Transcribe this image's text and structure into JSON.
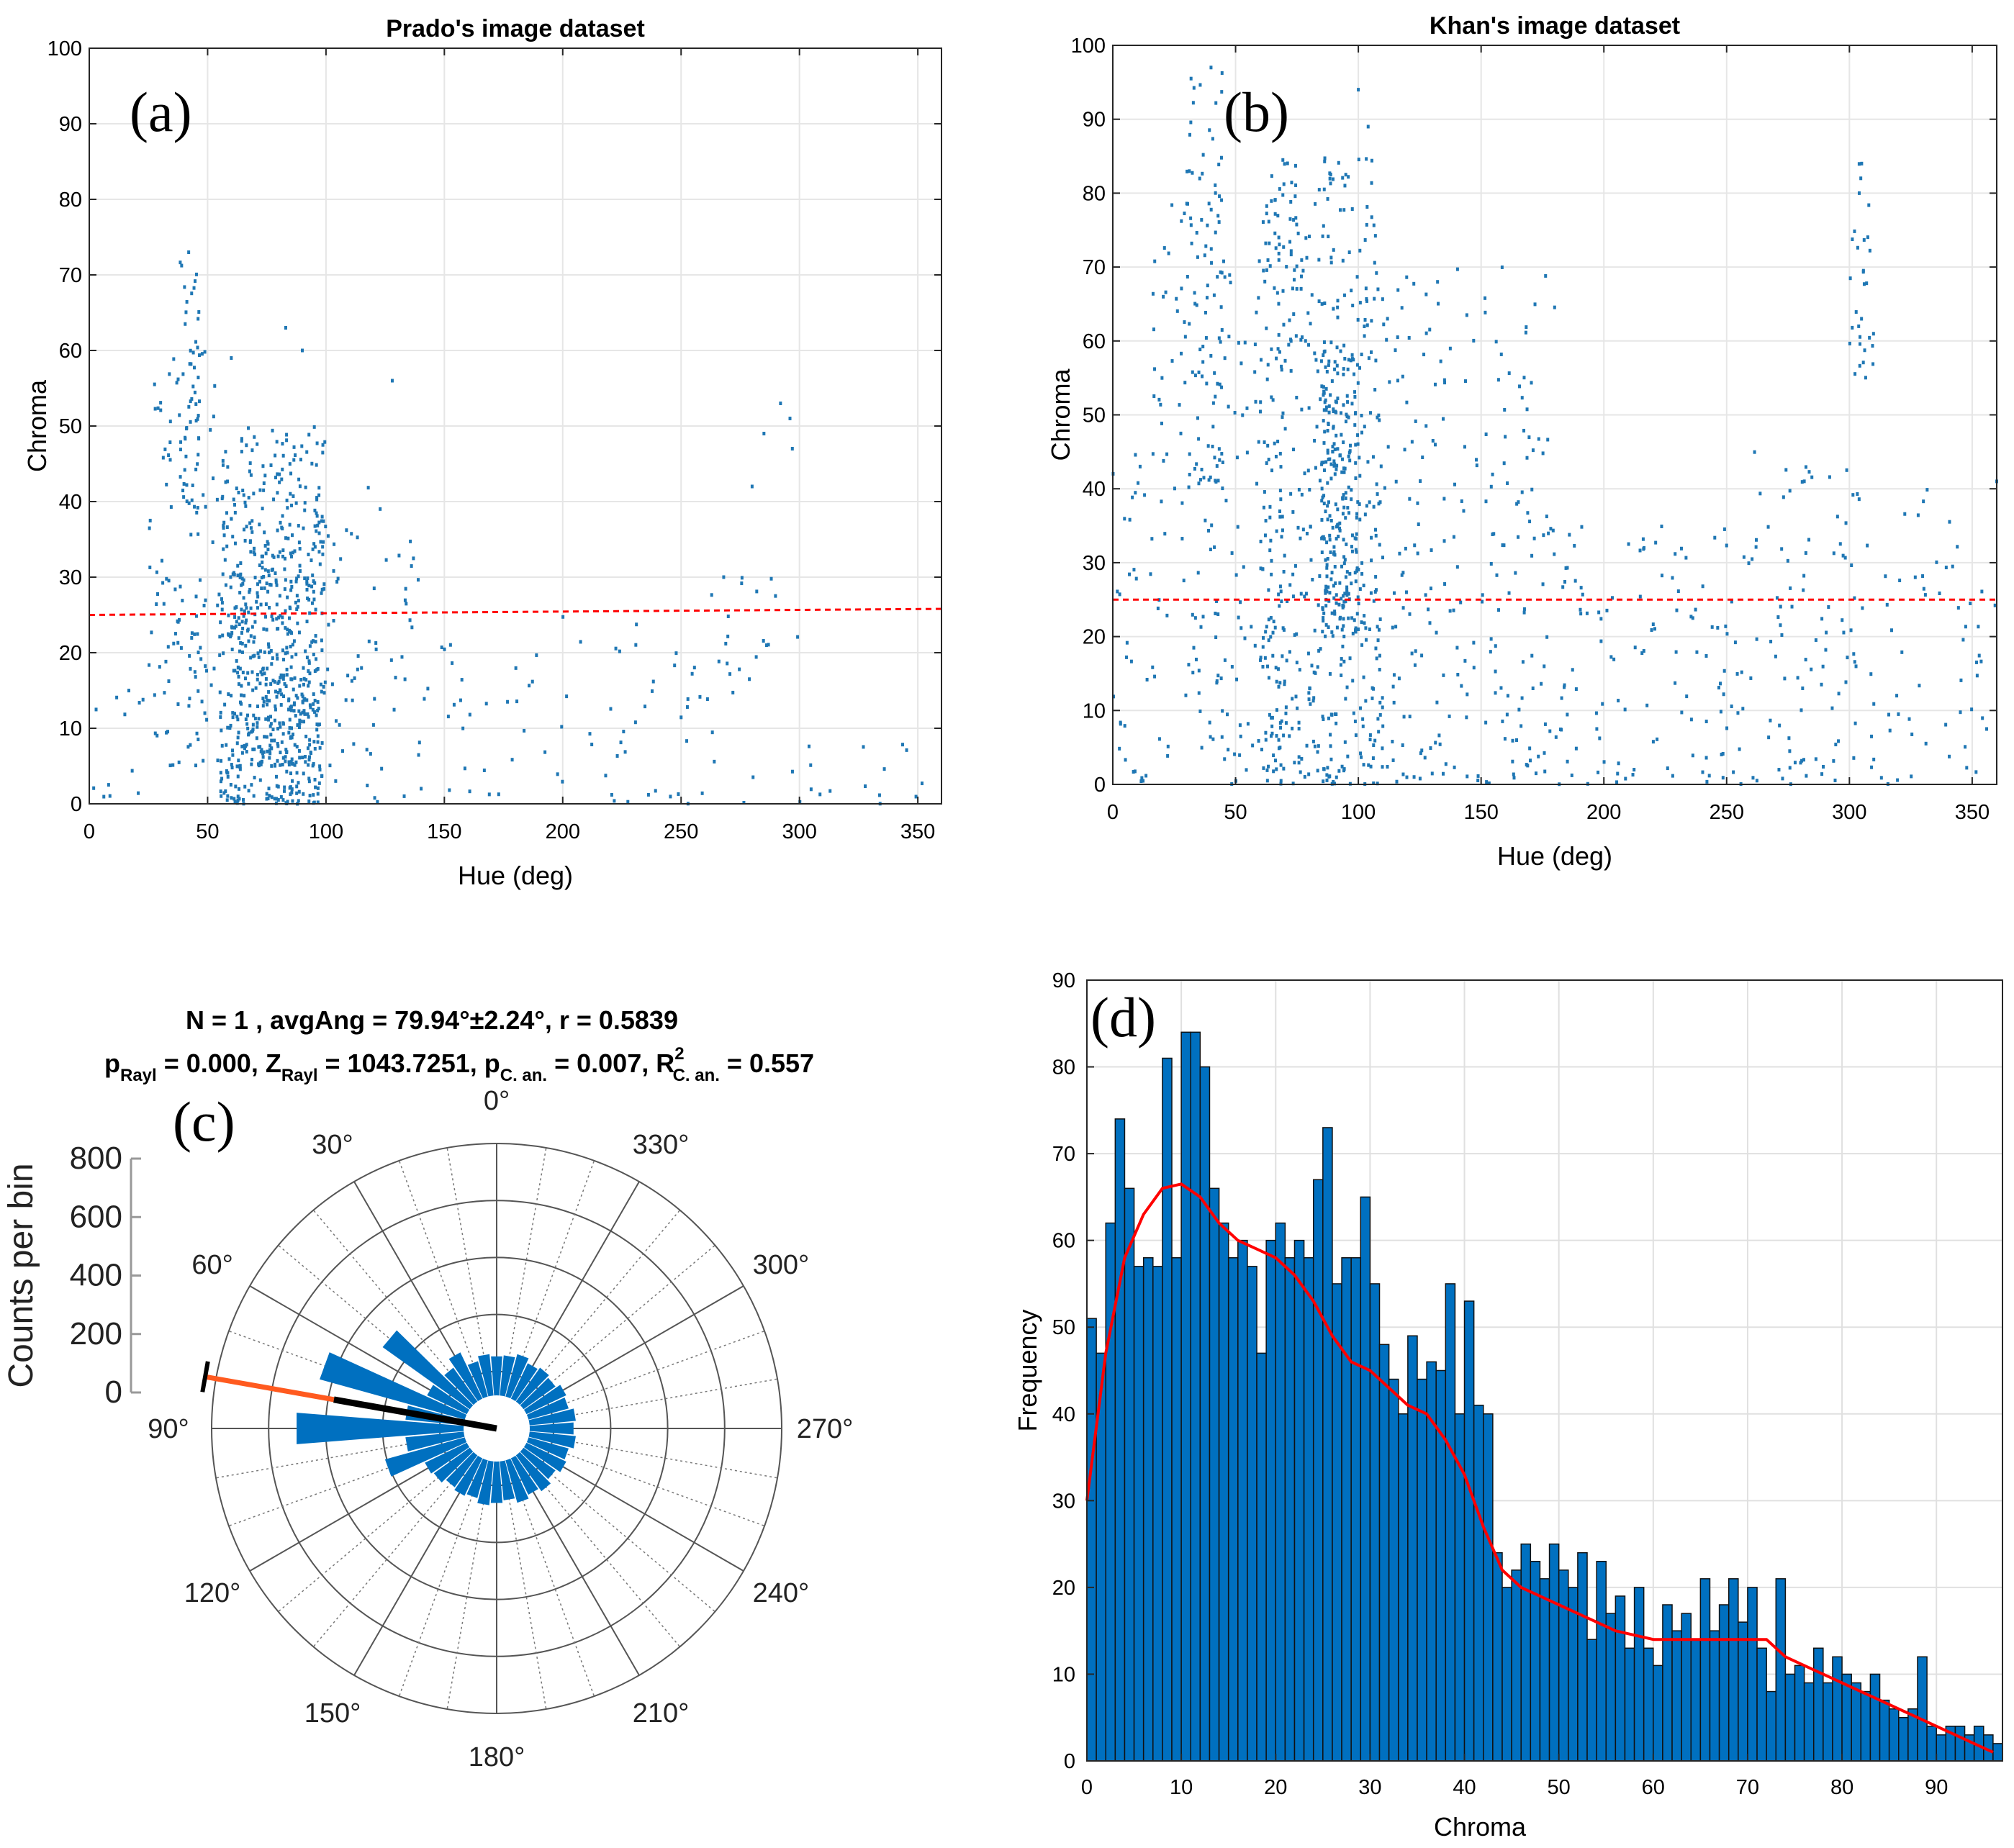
{
  "colors": {
    "points": "#1f77b4",
    "bars": "#0070c0",
    "threshold": "#ff0000",
    "kde": "#ff0000",
    "rose": "#0070c0",
    "mean_outer": "#ff5a1f",
    "mean_inner": "#000000"
  },
  "chart_data": [
    {
      "type": "scatter",
      "panel_label": "(a)",
      "title": "Prado's image dataset",
      "xlabel": "Hue (deg)",
      "ylabel": "Chroma",
      "xlim": [
        0,
        360
      ],
      "ylim": [
        0,
        100
      ],
      "xticks": [
        0,
        50,
        100,
        150,
        200,
        250,
        300,
        350
      ],
      "yticks": [
        0,
        10,
        20,
        30,
        40,
        50,
        60,
        70,
        80,
        90,
        100
      ],
      "grid": true,
      "threshold_line": {
        "from": [
          0,
          25
        ],
        "to": [
          360,
          25.8
        ]
      },
      "clusters": [
        {
          "x": [
            25,
            55
          ],
          "y": [
            5,
            60
          ],
          "n": 120
        },
        {
          "x": [
            38,
            48
          ],
          "y": [
            40,
            72
          ],
          "n": 40
        },
        {
          "x": [
            55,
            100
          ],
          "y": [
            0,
            50
          ],
          "n": 500
        },
        {
          "x": [
            60,
            95
          ],
          "y": [
            5,
            35
          ],
          "n": 250
        },
        {
          "x": [
            100,
            140
          ],
          "y": [
            0,
            42
          ],
          "n": 60
        },
        {
          "x": [
            140,
            250
          ],
          "y": [
            0,
            25
          ],
          "n": 60
        },
        {
          "x": [
            250,
            300
          ],
          "y": [
            0,
            30
          ],
          "n": 35
        },
        {
          "x": [
            300,
            360
          ],
          "y": [
            0,
            8
          ],
          "n": 15
        },
        {
          "x": [
            0,
            25
          ],
          "y": [
            0,
            15
          ],
          "n": 12
        }
      ],
      "points": [
        [
          42,
          73
        ],
        [
          60,
          59
        ],
        [
          83,
          63
        ],
        [
          90,
          60
        ],
        [
          128,
          56
        ],
        [
          285,
          49
        ],
        [
          292,
          53
        ],
        [
          296,
          51
        ],
        [
          297,
          47
        ],
        [
          280,
          42
        ],
        [
          268,
          30
        ]
      ]
    },
    {
      "type": "scatter",
      "panel_label": "(b)",
      "title": "Khan's image dataset",
      "xlabel": "Hue (deg)",
      "ylabel": "Chroma",
      "xlim": [
        0,
        360
      ],
      "ylim": [
        0,
        100
      ],
      "xticks": [
        0,
        50,
        100,
        150,
        200,
        250,
        300,
        350
      ],
      "yticks": [
        0,
        10,
        20,
        30,
        40,
        50,
        60,
        70,
        80,
        90,
        100
      ],
      "grid": true,
      "threshold_line": {
        "from": [
          0,
          25
        ],
        "to": [
          360,
          25
        ]
      },
      "clusters": [
        {
          "x": [
            30,
            45
          ],
          "y": [
            40,
            97
          ],
          "n": 80
        },
        {
          "x": [
            15,
            70
          ],
          "y": [
            0,
            80
          ],
          "n": 200
        },
        {
          "x": [
            60,
            110
          ],
          "y": [
            0,
            85
          ],
          "n": 450
        },
        {
          "x": [
            85,
            100
          ],
          "y": [
            20,
            60
          ],
          "n": 200
        },
        {
          "x": [
            100,
            180
          ],
          "y": [
            0,
            70
          ],
          "n": 250
        },
        {
          "x": [
            180,
            260
          ],
          "y": [
            0,
            35
          ],
          "n": 120
        },
        {
          "x": [
            260,
            300
          ],
          "y": [
            0,
            45
          ],
          "n": 80
        },
        {
          "x": [
            300,
            310
          ],
          "y": [
            55,
            84
          ],
          "n": 30
        },
        {
          "x": [
            300,
            360
          ],
          "y": [
            0,
            40
          ],
          "n": 70
        },
        {
          "x": [
            0,
            15
          ],
          "y": [
            0,
            45
          ],
          "n": 30
        }
      ],
      "points": [
        [
          40,
          97
        ],
        [
          100,
          94
        ],
        [
          104,
          89
        ],
        [
          305,
          84
        ],
        [
          304,
          80
        ],
        [
          360,
          41
        ]
      ]
    },
    {
      "type": "polar_histogram",
      "panel_label": "(c)",
      "title_line1": "N = 1 , avgAng = 79.94°±2.24°, r = 0.5839",
      "title_line2": {
        "p": "p",
        "p_sub": "Rayl",
        "p_val": " = 0.000, ",
        "z": "Z",
        "z_sub": "Rayl",
        "z_val": " = 1043.7251, ",
        "pc": "p",
        "pc_sub": "C. an.",
        "pc_val": " = 0.007, ",
        "r2": "R",
        "r2_sup": "2",
        "r2_sub": "C. an.",
        "r2_val": " = 0.557"
      },
      "rlabel": "Counts per bin",
      "rticks": [
        0,
        200,
        400,
        600,
        800
      ],
      "angle_labels": [
        "0°",
        "30°",
        "60°",
        "90°",
        "120°",
        "150°",
        "180°",
        "210°",
        "240°",
        "270°",
        "300°",
        "330°"
      ],
      "bin_width_deg": 10,
      "bins": [
        {
          "angle": 0,
          "count": 120
        },
        {
          "angle": 10,
          "count": 130
        },
        {
          "angle": 20,
          "count": 110
        },
        {
          "angle": 30,
          "count": 170
        },
        {
          "angle": 40,
          "count": 130
        },
        {
          "angle": 50,
          "count": 400
        },
        {
          "angle": 60,
          "count": 140
        },
        {
          "angle": 70,
          "count": 580
        },
        {
          "angle": 80,
          "count": 200
        },
        {
          "angle": 90,
          "count": 650
        },
        {
          "angle": 100,
          "count": 200
        },
        {
          "angle": 110,
          "count": 300
        },
        {
          "angle": 120,
          "count": 150
        },
        {
          "angle": 130,
          "count": 140
        },
        {
          "angle": 140,
          "count": 120
        },
        {
          "angle": 150,
          "count": 130
        },
        {
          "angle": 160,
          "count": 120
        },
        {
          "angle": 170,
          "count": 140
        },
        {
          "angle": 180,
          "count": 130
        },
        {
          "angle": 190,
          "count": 120
        },
        {
          "angle": 200,
          "count": 140
        },
        {
          "angle": 210,
          "count": 125
        },
        {
          "angle": 220,
          "count": 140
        },
        {
          "angle": 230,
          "count": 120
        },
        {
          "angle": 240,
          "count": 140
        },
        {
          "angle": 250,
          "count": 130
        },
        {
          "angle": 260,
          "count": 150
        },
        {
          "angle": 270,
          "count": 140
        },
        {
          "angle": 280,
          "count": 150
        },
        {
          "angle": 290,
          "count": 130
        },
        {
          "angle": 300,
          "count": 140
        },
        {
          "angle": 310,
          "count": 120
        },
        {
          "angle": 320,
          "count": 130
        },
        {
          "angle": 330,
          "count": 120
        },
        {
          "angle": 340,
          "count": 140
        },
        {
          "angle": 350,
          "count": 125
        }
      ],
      "mean_angle": 79.94,
      "mean_r": 0.5839
    },
    {
      "type": "bar",
      "panel_label": "(d)",
      "xlabel": "Chroma",
      "ylabel": "Frequency",
      "xlim": [
        0,
        97
      ],
      "ylim": [
        0,
        90
      ],
      "xticks": [
        0,
        10,
        20,
        30,
        40,
        50,
        60,
        70,
        80,
        90
      ],
      "yticks": [
        0,
        10,
        20,
        30,
        40,
        50,
        60,
        70,
        80,
        90
      ],
      "grid": true,
      "bin_width": 1,
      "values": [
        51,
        47,
        62,
        74,
        66,
        57,
        58,
        57,
        81,
        58,
        84,
        84,
        80,
        66,
        62,
        58,
        60,
        57,
        47,
        60,
        62,
        58,
        60,
        58,
        67,
        73,
        55,
        58,
        58,
        65,
        55,
        48,
        44,
        40,
        49,
        44,
        46,
        45,
        55,
        40,
        53,
        41,
        40,
        24,
        20,
        22,
        25,
        23,
        21,
        25,
        22,
        20,
        24,
        14,
        23,
        17,
        19,
        13,
        20,
        13,
        11,
        18,
        15,
        17,
        14,
        21,
        15,
        18,
        21,
        16,
        20,
        13,
        8,
        21,
        10,
        11,
        9,
        13,
        9,
        12,
        10,
        9,
        8,
        10,
        7,
        6,
        5,
        6,
        12,
        4,
        3,
        4,
        4,
        3,
        4,
        3,
        2
      ],
      "kde": {
        "x": [
          0,
          2,
          4,
          6,
          8,
          10,
          12,
          14,
          16,
          18,
          20,
          22,
          24,
          26,
          28,
          30,
          32,
          34,
          36,
          38,
          40,
          42,
          44,
          46,
          48,
          50,
          52,
          54,
          56,
          58,
          60,
          62,
          64,
          66,
          68,
          70,
          72,
          74,
          76,
          78,
          80,
          82,
          84,
          86,
          88,
          90,
          92,
          94,
          96
        ],
        "y": [
          30,
          47,
          58,
          63,
          66,
          66.5,
          65,
          62,
          60,
          59,
          58,
          56,
          53,
          49,
          46,
          45,
          43,
          41,
          40,
          37,
          33,
          27,
          22,
          20,
          19,
          18,
          17,
          16,
          15,
          14.5,
          14,
          14,
          14,
          14,
          14,
          14,
          14,
          12,
          11,
          10,
          9,
          8,
          7,
          6,
          5,
          4,
          3,
          2,
          1
        ]
      }
    }
  ]
}
